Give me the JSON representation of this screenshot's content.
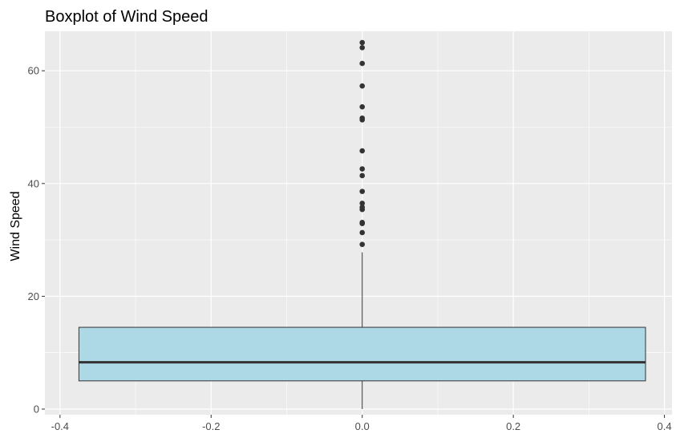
{
  "chart_data": {
    "type": "boxplot",
    "title": "Boxplot of Wind Speed",
    "xlabel": "",
    "ylabel": "Wind Speed",
    "xlim": [
      -0.42,
      0.41
    ],
    "ylim": [
      -1,
      67
    ],
    "x_ticks": [
      -0.4,
      -0.2,
      0.0,
      0.2,
      0.4
    ],
    "x_tick_labels": [
      "-0.4",
      "-0.2",
      "0.0",
      "0.2",
      "0.4"
    ],
    "y_ticks": [
      0,
      20,
      40,
      60
    ],
    "y_tick_labels": [
      "0",
      "20",
      "40",
      "60"
    ],
    "grid": true,
    "box": {
      "x_center": 0.0,
      "x_min": -0.375,
      "x_max": 0.375,
      "lower_whisker": 0,
      "q1": 5,
      "median": 8.3,
      "q3": 14.5,
      "upper_whisker": 27.8
    },
    "outliers": [
      29.2,
      31.3,
      32.9,
      33.1,
      35.4,
      35.8,
      36.5,
      38.6,
      41.4,
      42.6,
      45.8,
      51.3,
      51.6,
      53.6,
      57.3,
      61.3,
      64.1,
      65.0
    ],
    "colors": {
      "panel_background": "#ebebeb",
      "grid_major": "#ffffff",
      "box_fill": "#add8e6",
      "box_stroke": "#333333",
      "outlier": "#333333"
    }
  }
}
